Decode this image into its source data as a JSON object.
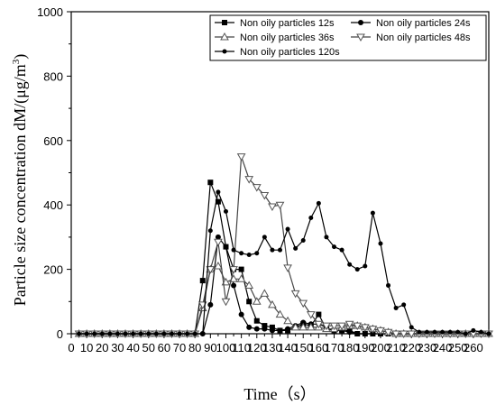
{
  "chart_data": {
    "type": "line",
    "xlabel": "Time（s）",
    "ylabel_main": "Particle size concentration dM/(μg/m",
    "ylabel_sup": "3",
    "ylabel_close": ")",
    "xlim": [
      0,
      270
    ],
    "ylim": [
      0,
      1000
    ],
    "xticks": [
      0,
      10,
      20,
      30,
      40,
      50,
      60,
      70,
      80,
      90,
      100,
      110,
      120,
      130,
      140,
      150,
      160,
      170,
      180,
      190,
      200,
      210,
      220,
      230,
      240,
      250,
      260
    ],
    "yticks": [
      0,
      200,
      400,
      600,
      800,
      1000
    ],
    "grid": false,
    "legend_position": "top-right",
    "series": [
      {
        "name": "Non oily particles 12s",
        "marker": "square",
        "x": [
          5,
          10,
          15,
          20,
          25,
          30,
          35,
          40,
          45,
          50,
          55,
          60,
          65,
          70,
          75,
          80,
          85,
          90,
          95,
          100,
          105,
          110,
          115,
          120,
          125,
          130,
          135,
          140,
          145,
          150,
          155,
          160,
          165,
          170,
          175,
          180,
          185,
          190,
          195,
          200,
          205,
          210,
          215,
          220,
          225,
          230,
          235,
          240,
          245,
          250,
          255,
          260,
          265,
          270
        ],
        "y": [
          0,
          0,
          0,
          0,
          0,
          0,
          0,
          0,
          0,
          0,
          0,
          0,
          0,
          0,
          0,
          0,
          165,
          470,
          410,
          270,
          200,
          200,
          100,
          40,
          25,
          20,
          10,
          10,
          20,
          30,
          25,
          60,
          15,
          10,
          10,
          10,
          0,
          0,
          0,
          0,
          0,
          0,
          0,
          0,
          0,
          0,
          0,
          0,
          0,
          0,
          0,
          0,
          0,
          0
        ]
      },
      {
        "name": "Non oily particles 24s",
        "marker": "circle",
        "x": [
          5,
          10,
          15,
          20,
          25,
          30,
          35,
          40,
          45,
          50,
          55,
          60,
          65,
          70,
          75,
          80,
          85,
          90,
          95,
          100,
          105,
          110,
          115,
          120,
          125,
          130,
          135,
          140,
          145,
          150,
          155,
          160,
          165,
          170,
          175,
          180,
          185,
          190,
          195,
          200,
          205,
          210,
          215,
          220,
          225,
          230,
          235,
          240,
          245,
          250,
          255,
          260,
          265,
          270
        ],
        "y": [
          0,
          0,
          0,
          0,
          0,
          0,
          0,
          0,
          0,
          0,
          0,
          0,
          0,
          0,
          0,
          0,
          0,
          90,
          300,
          270,
          150,
          60,
          20,
          15,
          15,
          10,
          10,
          15,
          25,
          35,
          30,
          30,
          20,
          10,
          10,
          5,
          0,
          0,
          0,
          0,
          0,
          0,
          0,
          0,
          0,
          0,
          0,
          0,
          0,
          0,
          0,
          0,
          0,
          0
        ]
      },
      {
        "name": "Non oily particles 36s",
        "marker": "triangle-up",
        "x": [
          5,
          10,
          15,
          20,
          25,
          30,
          35,
          40,
          45,
          50,
          55,
          60,
          65,
          70,
          75,
          80,
          85,
          90,
          95,
          100,
          105,
          110,
          115,
          120,
          125,
          130,
          135,
          140,
          145,
          150,
          155,
          160,
          165,
          170,
          175,
          180,
          185,
          190,
          195,
          200,
          205,
          210,
          215,
          220,
          225,
          230,
          235,
          240,
          245,
          250,
          255,
          260,
          265,
          270
        ],
        "y": [
          0,
          0,
          0,
          0,
          0,
          0,
          0,
          0,
          0,
          0,
          0,
          0,
          0,
          0,
          0,
          0,
          80,
          200,
          210,
          160,
          170,
          170,
          150,
          100,
          125,
          90,
          60,
          40,
          20,
          20,
          20,
          20,
          15,
          15,
          20,
          25,
          25,
          20,
          15,
          10,
          5,
          0,
          0,
          0,
          0,
          0,
          0,
          0,
          0,
          0,
          0,
          0,
          0,
          0
        ]
      },
      {
        "name": "Non oily particles 48s",
        "marker": "triangle-down",
        "x": [
          5,
          10,
          15,
          20,
          25,
          30,
          35,
          40,
          45,
          50,
          55,
          60,
          65,
          70,
          75,
          80,
          85,
          90,
          95,
          100,
          105,
          110,
          115,
          120,
          125,
          130,
          135,
          140,
          145,
          150,
          155,
          160,
          165,
          170,
          175,
          180,
          185,
          190,
          195,
          200,
          205,
          210,
          215,
          220,
          225,
          230,
          235,
          240,
          245,
          250,
          255,
          260,
          265,
          270
        ],
        "y": [
          0,
          0,
          0,
          0,
          0,
          0,
          0,
          0,
          0,
          0,
          0,
          0,
          0,
          0,
          0,
          0,
          90,
          200,
          285,
          100,
          200,
          550,
          480,
          455,
          430,
          395,
          400,
          205,
          125,
          95,
          60,
          30,
          25,
          25,
          25,
          30,
          25,
          20,
          15,
          10,
          5,
          0,
          0,
          0,
          0,
          0,
          0,
          0,
          0,
          0,
          0,
          0,
          0,
          0
        ]
      },
      {
        "name": "Non oily particles 120s",
        "marker": "dot",
        "x": [
          5,
          10,
          15,
          20,
          25,
          30,
          35,
          40,
          45,
          50,
          55,
          60,
          65,
          70,
          75,
          80,
          85,
          90,
          95,
          100,
          105,
          110,
          115,
          120,
          125,
          130,
          135,
          140,
          145,
          150,
          155,
          160,
          165,
          170,
          175,
          180,
          185,
          190,
          195,
          200,
          205,
          210,
          215,
          220,
          225,
          230,
          235,
          240,
          245,
          250,
          255,
          260,
          265,
          270
        ],
        "y": [
          0,
          0,
          0,
          0,
          0,
          0,
          0,
          0,
          0,
          0,
          0,
          0,
          0,
          0,
          0,
          0,
          0,
          320,
          440,
          380,
          260,
          250,
          245,
          250,
          300,
          260,
          260,
          325,
          265,
          290,
          360,
          405,
          300,
          270,
          260,
          215,
          200,
          210,
          375,
          280,
          150,
          80,
          90,
          20,
          5,
          5,
          5,
          5,
          5,
          5,
          0,
          10,
          5,
          0
        ]
      }
    ]
  }
}
